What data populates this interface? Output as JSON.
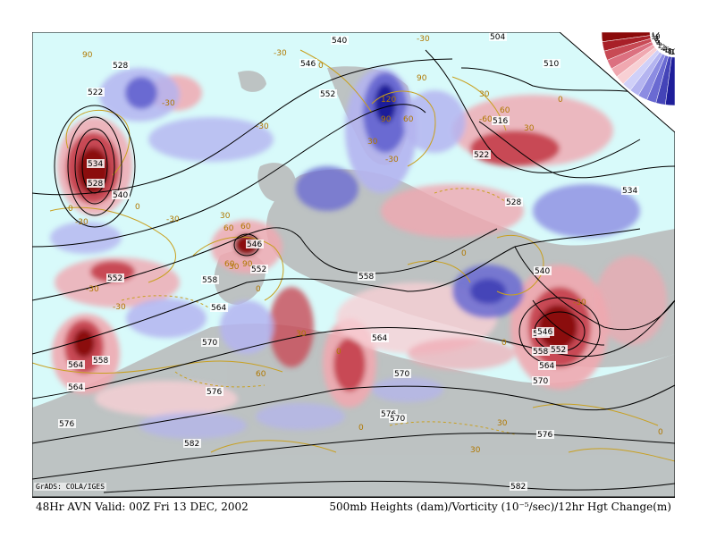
{
  "map": {
    "title_left": "48Hr AVN Valid: 00Z Fri 13 DEC, 2002",
    "title_right": "500mb Heights (dam)/Vorticity (10⁻⁵/sec)/12hr Hgt Change(m)",
    "credit": "GrADS: COLA/IGES",
    "colors": {
      "background": "#d8fafa",
      "land": "#b9b9b9",
      "pos_strong": "#8b0a0a",
      "pos_mid": "#c84a55",
      "pos_light": "#f0a8b0",
      "neg_light": "#b4b4f0",
      "neg_mid": "#6a6ad2",
      "neg_strong": "#1e1e9a",
      "height_contour": "#000000",
      "change_contour": "#c8a020"
    },
    "color_scale": {
      "labels": [
        "12",
        "10",
        "8",
        "6",
        "4",
        "2",
        "-2",
        "-4",
        "-6",
        "-8",
        "-10",
        "-12"
      ],
      "colors": [
        "#8b0a0a",
        "#a82028",
        "#c84a55",
        "#dc7080",
        "#f0a8b0",
        "#f8d0d4",
        "#d0d0f8",
        "#b4b4f0",
        "#8c8ce2",
        "#6a6ad2",
        "#4444b8",
        "#1e1e9a"
      ]
    },
    "height_labels": [
      {
        "text": "540"
      },
      {
        "text": "546"
      },
      {
        "text": "552"
      },
      {
        "text": "528"
      },
      {
        "text": "522"
      },
      {
        "text": "534"
      },
      {
        "text": "528"
      },
      {
        "text": "504"
      },
      {
        "text": "510"
      },
      {
        "text": "516"
      },
      {
        "text": "522"
      },
      {
        "text": "528"
      },
      {
        "text": "534"
      },
      {
        "text": "540"
      },
      {
        "text": "546"
      },
      {
        "text": "546"
      },
      {
        "text": "552"
      },
      {
        "text": "552"
      },
      {
        "text": "558"
      },
      {
        "text": "558"
      },
      {
        "text": "564"
      },
      {
        "text": "564"
      },
      {
        "text": "570"
      },
      {
        "text": "570"
      },
      {
        "text": "576"
      },
      {
        "text": "576"
      },
      {
        "text": "582"
      },
      {
        "text": "582"
      },
      {
        "text": "576"
      },
      {
        "text": "552"
      },
      {
        "text": "558"
      },
      {
        "text": "564"
      },
      {
        "text": "570"
      },
      {
        "text": "546"
      },
      {
        "text": "540"
      },
      {
        "text": "564"
      },
      {
        "text": "558"
      },
      {
        "text": "564"
      },
      {
        "text": "570"
      },
      {
        "text": "576"
      }
    ],
    "change_labels": [
      {
        "text": "90"
      },
      {
        "text": "-30"
      },
      {
        "text": "120"
      },
      {
        "text": "90"
      },
      {
        "text": "60"
      },
      {
        "text": "30"
      },
      {
        "text": "-30"
      },
      {
        "text": "-30"
      },
      {
        "text": "0"
      },
      {
        "text": "30"
      },
      {
        "text": "90"
      },
      {
        "text": "60"
      },
      {
        "text": "30"
      },
      {
        "text": "0"
      },
      {
        "text": "-30"
      },
      {
        "text": "-30"
      },
      {
        "text": "0"
      },
      {
        "text": "60"
      },
      {
        "text": "30"
      },
      {
        "text": "-30"
      },
      {
        "text": "0"
      },
      {
        "text": "-30"
      },
      {
        "text": "30"
      },
      {
        "text": "60"
      },
      {
        "text": "90"
      },
      {
        "text": "0"
      },
      {
        "text": "30"
      },
      {
        "text": "-30"
      },
      {
        "text": "-60"
      },
      {
        "text": "0"
      },
      {
        "text": "30"
      },
      {
        "text": "0"
      },
      {
        "text": "60"
      },
      {
        "text": "-30"
      },
      {
        "text": "0"
      },
      {
        "text": "-30"
      },
      {
        "text": "60"
      },
      {
        "text": "0"
      },
      {
        "text": "30"
      },
      {
        "text": "0"
      }
    ]
  }
}
